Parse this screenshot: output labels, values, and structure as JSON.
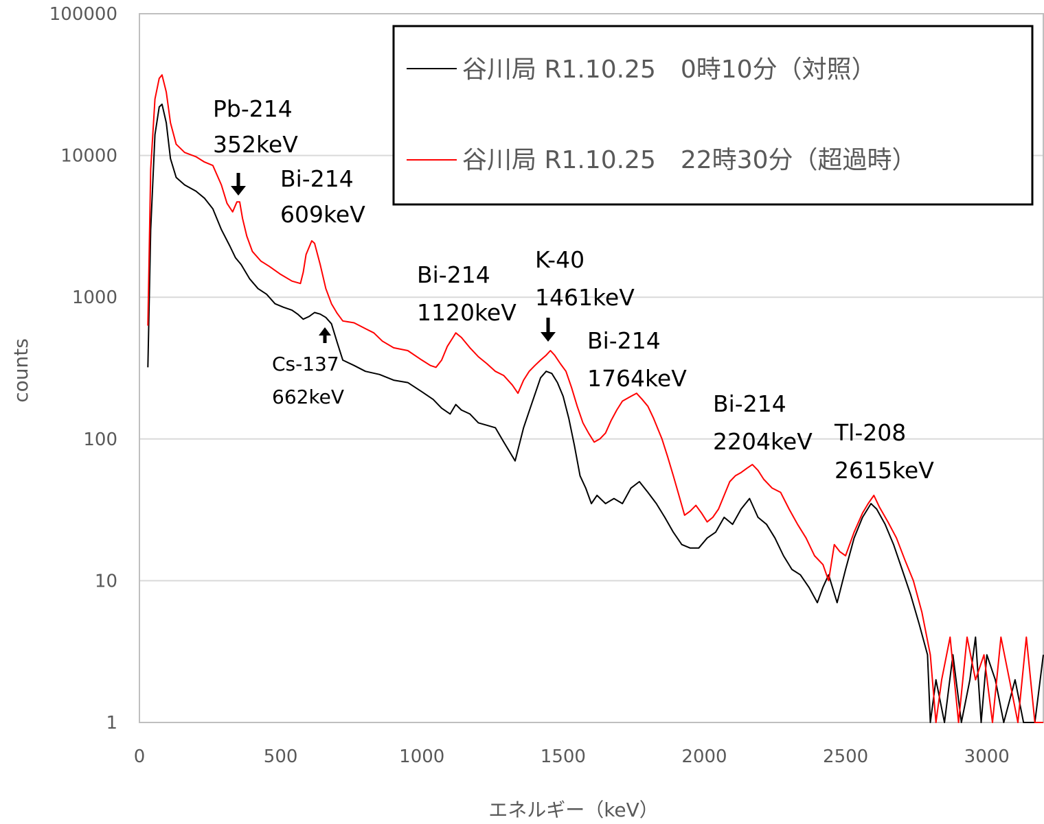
{
  "chart_data": {
    "type": "line",
    "xlabel": "エネルギー（keV）",
    "ylabel": "counts",
    "xlim": [
      0,
      3200
    ],
    "ylim": [
      1,
      100000
    ],
    "y_scale": "log",
    "x_ticks": [
      "0",
      "500",
      "1000",
      "1500",
      "2000",
      "2500",
      "3000"
    ],
    "y_ticks": [
      "1",
      "10",
      "100",
      "1000",
      "10000",
      "100000"
    ],
    "grid": "horizontal",
    "legend_position": "top-right",
    "colors": {
      "control": "#000000",
      "exceed": "#ff0000",
      "grid": "#d9d9d9",
      "axis": "#bfbfbf"
    },
    "series": [
      {
        "name": "谷川局 R1.10.25　0時10分（対照）",
        "color": "#000000",
        "points": [
          [
            30,
            320
          ],
          [
            40,
            3000
          ],
          [
            55,
            14000
          ],
          [
            70,
            22000
          ],
          [
            80,
            23000
          ],
          [
            95,
            17000
          ],
          [
            110,
            9500
          ],
          [
            130,
            7000
          ],
          [
            160,
            6200
          ],
          [
            200,
            5600
          ],
          [
            230,
            5000
          ],
          [
            260,
            4200
          ],
          [
            290,
            3000
          ],
          [
            320,
            2300
          ],
          [
            340,
            1900
          ],
          [
            360,
            1700
          ],
          [
            390,
            1350
          ],
          [
            420,
            1150
          ],
          [
            450,
            1050
          ],
          [
            480,
            900
          ],
          [
            510,
            850
          ],
          [
            540,
            810
          ],
          [
            560,
            760
          ],
          [
            580,
            700
          ],
          [
            600,
            730
          ],
          [
            620,
            780
          ],
          [
            640,
            760
          ],
          [
            660,
            720
          ],
          [
            680,
            650
          ],
          [
            700,
            480
          ],
          [
            720,
            360
          ],
          [
            760,
            330
          ],
          [
            800,
            300
          ],
          [
            850,
            285
          ],
          [
            900,
            260
          ],
          [
            950,
            250
          ],
          [
            1000,
            215
          ],
          [
            1040,
            190
          ],
          [
            1070,
            165
          ],
          [
            1100,
            150
          ],
          [
            1120,
            175
          ],
          [
            1140,
            160
          ],
          [
            1170,
            150
          ],
          [
            1200,
            130
          ],
          [
            1230,
            125
          ],
          [
            1260,
            120
          ],
          [
            1290,
            95
          ],
          [
            1330,
            70
          ],
          [
            1360,
            120
          ],
          [
            1390,
            180
          ],
          [
            1420,
            270
          ],
          [
            1440,
            300
          ],
          [
            1460,
            290
          ],
          [
            1480,
            250
          ],
          [
            1500,
            200
          ],
          [
            1520,
            140
          ],
          [
            1540,
            90
          ],
          [
            1560,
            55
          ],
          [
            1580,
            45
          ],
          [
            1600,
            35
          ],
          [
            1620,
            40
          ],
          [
            1650,
            35
          ],
          [
            1680,
            38
          ],
          [
            1710,
            35
          ],
          [
            1740,
            45
          ],
          [
            1770,
            50
          ],
          [
            1800,
            42
          ],
          [
            1830,
            35
          ],
          [
            1860,
            28
          ],
          [
            1890,
            22
          ],
          [
            1920,
            18
          ],
          [
            1950,
            17
          ],
          [
            1980,
            17
          ],
          [
            2010,
            20
          ],
          [
            2040,
            22
          ],
          [
            2070,
            28
          ],
          [
            2100,
            25
          ],
          [
            2130,
            32
          ],
          [
            2160,
            38
          ],
          [
            2190,
            28
          ],
          [
            2220,
            25
          ],
          [
            2250,
            20
          ],
          [
            2280,
            15
          ],
          [
            2310,
            12
          ],
          [
            2340,
            11
          ],
          [
            2370,
            9
          ],
          [
            2400,
            7
          ],
          [
            2420,
            9
          ],
          [
            2440,
            11
          ],
          [
            2470,
            7
          ],
          [
            2500,
            12
          ],
          [
            2530,
            20
          ],
          [
            2560,
            28
          ],
          [
            2590,
            35
          ],
          [
            2610,
            32
          ],
          [
            2640,
            25
          ],
          [
            2670,
            18
          ],
          [
            2700,
            12
          ],
          [
            2730,
            8
          ],
          [
            2760,
            5
          ],
          [
            2790,
            3
          ],
          [
            2800,
            1
          ],
          [
            2820,
            2
          ],
          [
            2850,
            1
          ],
          [
            2880,
            3
          ],
          [
            2910,
            1
          ],
          [
            2940,
            2
          ],
          [
            2960,
            4
          ],
          [
            2980,
            1
          ],
          [
            3000,
            3
          ],
          [
            3030,
            2
          ],
          [
            3060,
            1
          ],
          [
            3100,
            2
          ],
          [
            3130,
            1
          ],
          [
            3170,
            1
          ],
          [
            3200,
            3
          ]
        ]
      },
      {
        "name": "谷川局 R1.10.25　22時30分（超過時）",
        "color": "#ff0000",
        "points": [
          [
            30,
            630
          ],
          [
            40,
            8000
          ],
          [
            55,
            25000
          ],
          [
            70,
            35000
          ],
          [
            80,
            37000
          ],
          [
            95,
            28000
          ],
          [
            110,
            17000
          ],
          [
            130,
            12000
          ],
          [
            160,
            10500
          ],
          [
            200,
            9800
          ],
          [
            230,
            9000
          ],
          [
            260,
            8500
          ],
          [
            290,
            6200
          ],
          [
            310,
            4600
          ],
          [
            330,
            4000
          ],
          [
            345,
            4700
          ],
          [
            355,
            4700
          ],
          [
            365,
            3600
          ],
          [
            380,
            2700
          ],
          [
            400,
            2100
          ],
          [
            430,
            1800
          ],
          [
            460,
            1650
          ],
          [
            500,
            1450
          ],
          [
            540,
            1300
          ],
          [
            570,
            1250
          ],
          [
            580,
            1500
          ],
          [
            590,
            2000
          ],
          [
            610,
            2500
          ],
          [
            620,
            2400
          ],
          [
            640,
            1700
          ],
          [
            660,
            1150
          ],
          [
            680,
            900
          ],
          [
            700,
            770
          ],
          [
            720,
            680
          ],
          [
            760,
            660
          ],
          [
            800,
            600
          ],
          [
            830,
            560
          ],
          [
            860,
            490
          ],
          [
            900,
            440
          ],
          [
            950,
            420
          ],
          [
            1000,
            360
          ],
          [
            1030,
            330
          ],
          [
            1050,
            320
          ],
          [
            1070,
            360
          ],
          [
            1090,
            450
          ],
          [
            1110,
            520
          ],
          [
            1120,
            560
          ],
          [
            1140,
            520
          ],
          [
            1170,
            440
          ],
          [
            1200,
            380
          ],
          [
            1230,
            340
          ],
          [
            1260,
            300
          ],
          [
            1290,
            280
          ],
          [
            1320,
            240
          ],
          [
            1340,
            210
          ],
          [
            1360,
            260
          ],
          [
            1380,
            300
          ],
          [
            1400,
            330
          ],
          [
            1420,
            360
          ],
          [
            1440,
            390
          ],
          [
            1455,
            420
          ],
          [
            1470,
            390
          ],
          [
            1490,
            340
          ],
          [
            1510,
            300
          ],
          [
            1530,
            230
          ],
          [
            1550,
            170
          ],
          [
            1570,
            130
          ],
          [
            1590,
            110
          ],
          [
            1610,
            95
          ],
          [
            1630,
            100
          ],
          [
            1650,
            110
          ],
          [
            1670,
            135
          ],
          [
            1690,
            160
          ],
          [
            1710,
            185
          ],
          [
            1740,
            200
          ],
          [
            1760,
            210
          ],
          [
            1780,
            190
          ],
          [
            1800,
            170
          ],
          [
            1820,
            140
          ],
          [
            1850,
            100
          ],
          [
            1870,
            75
          ],
          [
            1890,
            55
          ],
          [
            1910,
            40
          ],
          [
            1930,
            29
          ],
          [
            1950,
            31
          ],
          [
            1970,
            34
          ],
          [
            1990,
            30
          ],
          [
            2010,
            26
          ],
          [
            2030,
            28
          ],
          [
            2050,
            32
          ],
          [
            2070,
            40
          ],
          [
            2090,
            50
          ],
          [
            2110,
            55
          ],
          [
            2130,
            58
          ],
          [
            2150,
            62
          ],
          [
            2170,
            66
          ],
          [
            2190,
            60
          ],
          [
            2210,
            52
          ],
          [
            2240,
            45
          ],
          [
            2270,
            42
          ],
          [
            2300,
            32
          ],
          [
            2330,
            25
          ],
          [
            2360,
            20
          ],
          [
            2390,
            15
          ],
          [
            2420,
            13
          ],
          [
            2440,
            10
          ],
          [
            2460,
            18
          ],
          [
            2480,
            16
          ],
          [
            2500,
            15
          ],
          [
            2530,
            22
          ],
          [
            2560,
            30
          ],
          [
            2580,
            35
          ],
          [
            2600,
            40
          ],
          [
            2620,
            33
          ],
          [
            2650,
            26
          ],
          [
            2680,
            20
          ],
          [
            2710,
            14
          ],
          [
            2740,
            10
          ],
          [
            2770,
            6
          ],
          [
            2800,
            3
          ],
          [
            2820,
            1
          ],
          [
            2840,
            2
          ],
          [
            2870,
            4
          ],
          [
            2900,
            1
          ],
          [
            2930,
            4
          ],
          [
            2960,
            2
          ],
          [
            2990,
            3
          ],
          [
            3020,
            1
          ],
          [
            3050,
            4
          ],
          [
            3080,
            2
          ],
          [
            3110,
            1
          ],
          [
            3140,
            4
          ],
          [
            3170,
            1
          ],
          [
            3200,
            1
          ]
        ]
      }
    ],
    "annotations": [
      {
        "lines": [
          "Pb-214",
          "352keV"
        ],
        "x": 352,
        "arrow": "down"
      },
      {
        "lines": [
          "Bi-214",
          "609keV"
        ],
        "x": 609
      },
      {
        "lines": [
          "Cs-137",
          "662keV"
        ],
        "x": 662,
        "arrow": "up"
      },
      {
        "lines": [
          "Bi-214",
          "1120keV"
        ],
        "x": 1120
      },
      {
        "lines": [
          "K-40",
          "1461keV"
        ],
        "x": 1461,
        "arrow": "down"
      },
      {
        "lines": [
          "Bi-214",
          "1764keV"
        ],
        "x": 1764
      },
      {
        "lines": [
          "Bi-214",
          "2204keV"
        ],
        "x": 2204
      },
      {
        "lines": [
          "Tl-208",
          "2615keV"
        ],
        "x": 2615
      }
    ]
  }
}
